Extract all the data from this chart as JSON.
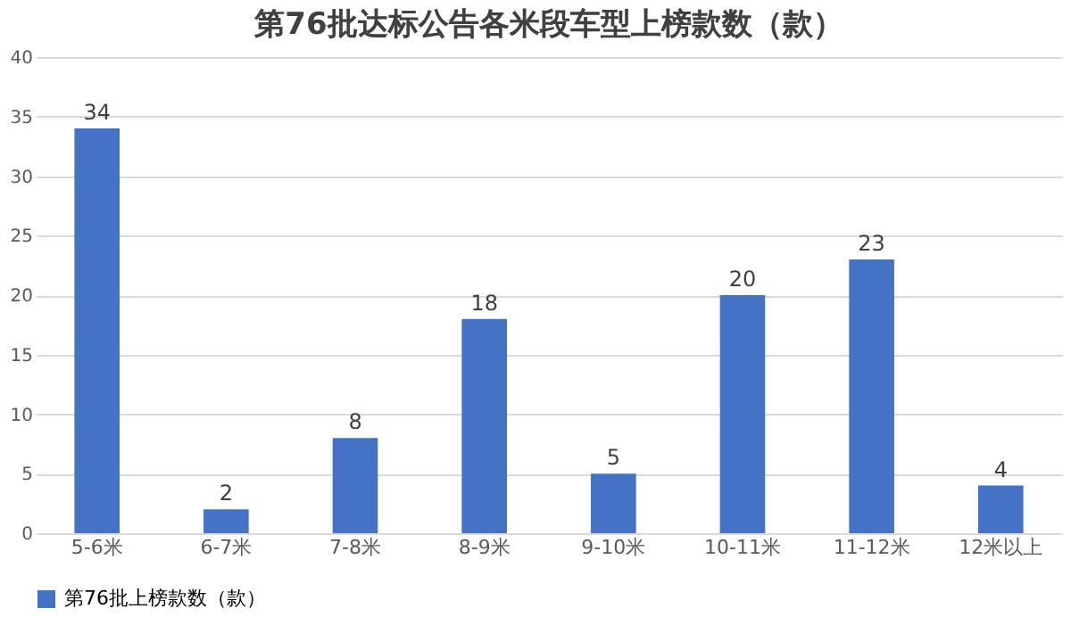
{
  "chart_data": {
    "type": "bar",
    "title": "第76批达标公告各米段车型上榜款数（款）",
    "categories": [
      "5-6米",
      "6-7米",
      "7-8米",
      "8-9米",
      "9-10米",
      "10-11米",
      "11-12米",
      "12米以上"
    ],
    "series": [
      {
        "name": "第76批上榜款数（款）",
        "color": "#4472c4",
        "values": [
          34,
          2,
          8,
          18,
          5,
          20,
          23,
          4
        ]
      }
    ],
    "ylim": [
      0,
      40
    ],
    "yticks": [
      0,
      5,
      10,
      15,
      20,
      25,
      30,
      35,
      40
    ],
    "grid": "y",
    "legend": "bottom",
    "data_labels": true
  }
}
